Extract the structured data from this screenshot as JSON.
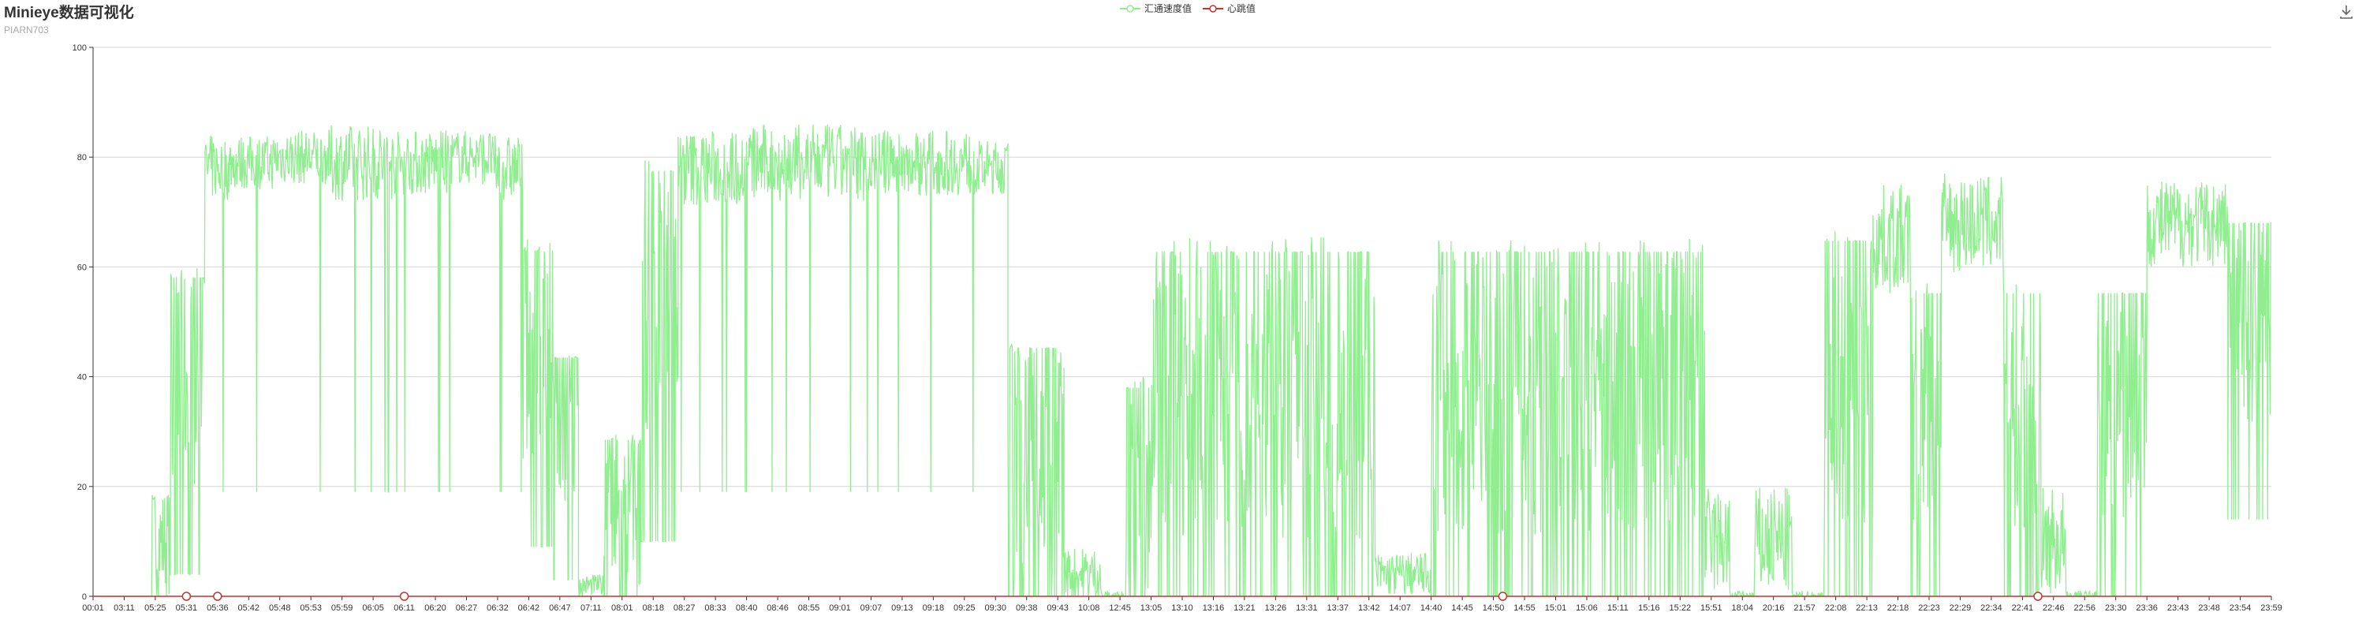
{
  "title": "Minieye数据可视化",
  "subtitle": "PIARN703",
  "legend": [
    {
      "name": "汇通速度值",
      "color": "#90ee90"
    },
    {
      "name": "心跳值",
      "color": "#c23531"
    }
  ],
  "toolbar": {
    "save_icon": "download-icon"
  },
  "chart_data": {
    "type": "line",
    "title": "Minieye数据可视化",
    "subtitle": "PIARN703",
    "ylim": [
      0,
      100
    ],
    "yticks": [
      0,
      20,
      40,
      60,
      80,
      100
    ],
    "grid": true,
    "legend_position": "top-center",
    "x_tick_labels": [
      "00:01",
      "03:11",
      "05:25",
      "05:31",
      "05:36",
      "05:42",
      "05:48",
      "05:53",
      "05:59",
      "06:05",
      "06:11",
      "06:20",
      "06:27",
      "06:32",
      "06:42",
      "06:47",
      "07:11",
      "08:01",
      "08:18",
      "08:27",
      "08:33",
      "08:40",
      "08:46",
      "08:55",
      "09:01",
      "09:07",
      "09:13",
      "09:18",
      "09:25",
      "09:30",
      "09:38",
      "09:43",
      "10:08",
      "12:45",
      "13:05",
      "13:10",
      "13:16",
      "13:21",
      "13:26",
      "13:31",
      "13:37",
      "13:42",
      "14:07",
      "14:40",
      "14:45",
      "14:50",
      "14:55",
      "15:01",
      "15:06",
      "15:11",
      "15:16",
      "15:22",
      "15:51",
      "18:04",
      "20:16",
      "21:57",
      "22:08",
      "22:13",
      "22:18",
      "22:23",
      "22:29",
      "22:34",
      "22:41",
      "22:46",
      "22:56",
      "23:30",
      "23:36",
      "23:43",
      "23:48",
      "23:54",
      "23:59"
    ],
    "series": [
      {
        "name": "汇通速度值",
        "color": "#90ee90",
        "segments": [
          {
            "from": 0.0,
            "to": 1.9,
            "level": 0,
            "spread": 0
          },
          {
            "from": 1.9,
            "to": 2.5,
            "level": 10,
            "spread": 20
          },
          {
            "from": 2.5,
            "to": 3.6,
            "level": 40,
            "spread": 40
          },
          {
            "from": 3.6,
            "to": 4.4,
            "level": 78,
            "spread": 12
          },
          {
            "from": 4.4,
            "to": 5.8,
            "level": 79,
            "spread": 10
          },
          {
            "from": 5.8,
            "to": 7.6,
            "level": 80,
            "spread": 10
          },
          {
            "from": 7.6,
            "to": 9.6,
            "level": 79,
            "spread": 14
          },
          {
            "from": 9.6,
            "to": 11.5,
            "level": 79,
            "spread": 12
          },
          {
            "from": 11.5,
            "to": 12.8,
            "level": 80,
            "spread": 10
          },
          {
            "from": 12.8,
            "to": 13.8,
            "level": 78,
            "spread": 12
          },
          {
            "from": 13.8,
            "to": 14.8,
            "level": 45,
            "spread": 40
          },
          {
            "from": 14.8,
            "to": 15.6,
            "level": 30,
            "spread": 30
          },
          {
            "from": 15.6,
            "to": 16.4,
            "level": 2,
            "spread": 4
          },
          {
            "from": 16.4,
            "to": 17.6,
            "level": 15,
            "spread": 30
          },
          {
            "from": 17.6,
            "to": 18.8,
            "level": 55,
            "spread": 50
          },
          {
            "from": 18.8,
            "to": 21.0,
            "level": 78,
            "spread": 14
          },
          {
            "from": 21.0,
            "to": 25.0,
            "level": 79,
            "spread": 14
          },
          {
            "from": 25.0,
            "to": 28.2,
            "level": 79,
            "spread": 12
          },
          {
            "from": 28.2,
            "to": 29.4,
            "level": 78,
            "spread": 10
          },
          {
            "from": 29.4,
            "to": 31.2,
            "level": 25,
            "spread": 45
          },
          {
            "from": 31.2,
            "to": 32.4,
            "level": 4,
            "spread": 10
          },
          {
            "from": 32.4,
            "to": 33.2,
            "level": 0,
            "spread": 2
          },
          {
            "from": 33.2,
            "to": 34.0,
            "level": 20,
            "spread": 40
          },
          {
            "from": 34.0,
            "to": 41.2,
            "level": 38,
            "spread": 55
          },
          {
            "from": 41.2,
            "to": 43.0,
            "level": 4,
            "spread": 8
          },
          {
            "from": 43.0,
            "to": 51.8,
            "level": 38,
            "spread": 55
          },
          {
            "from": 51.8,
            "to": 52.6,
            "level": 10,
            "spread": 20
          },
          {
            "from": 52.6,
            "to": 53.4,
            "level": 0,
            "spread": 2
          },
          {
            "from": 53.4,
            "to": 54.6,
            "level": 10,
            "spread": 20
          },
          {
            "from": 54.6,
            "to": 55.6,
            "level": 0,
            "spread": 2
          },
          {
            "from": 55.6,
            "to": 57.2,
            "level": 40,
            "spread": 55
          },
          {
            "from": 57.2,
            "to": 58.4,
            "level": 65,
            "spread": 20
          },
          {
            "from": 58.4,
            "to": 59.4,
            "level": 35,
            "spread": 45
          },
          {
            "from": 59.4,
            "to": 61.4,
            "level": 68,
            "spread": 18
          },
          {
            "from": 61.4,
            "to": 62.6,
            "level": 35,
            "spread": 45
          },
          {
            "from": 62.6,
            "to": 63.4,
            "level": 10,
            "spread": 20
          },
          {
            "from": 63.4,
            "to": 64.4,
            "level": 0,
            "spread": 2
          },
          {
            "from": 64.4,
            "to": 66.0,
            "level": 35,
            "spread": 45
          },
          {
            "from": 66.0,
            "to": 68.6,
            "level": 68,
            "spread": 16
          },
          {
            "from": 68.6,
            "to": 70.0,
            "level": 50,
            "spread": 40
          }
        ]
      },
      {
        "name": "心跳值",
        "color": "#c23531",
        "marker_positions": [
          3.0,
          4.0,
          10.0,
          45.3,
          62.5
        ],
        "values": 0
      }
    ]
  }
}
